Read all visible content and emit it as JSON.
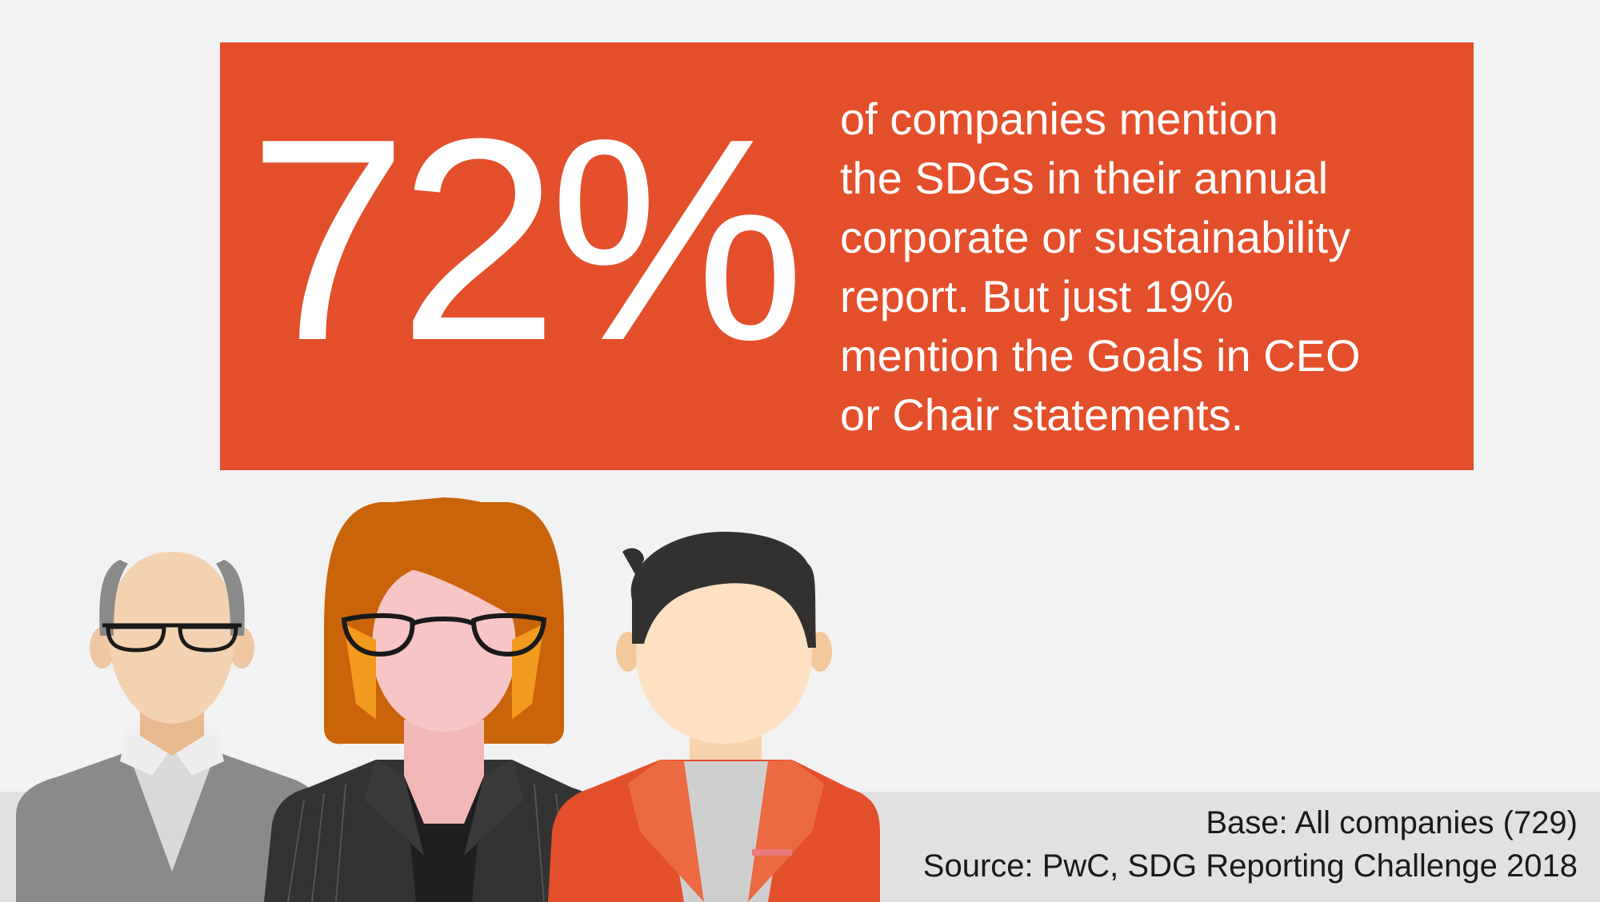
{
  "colors": {
    "background": "#f2f2f2",
    "footer_band": "#e1e1e1",
    "accent_orange": "#e44f2b",
    "text_light": "#ffffff",
    "text_dark": "#1a1a1a"
  },
  "headline": {
    "stat": "72%",
    "lines": [
      "of companies mention",
      "the SDGs in their annual",
      "corporate or sustainability",
      "report. But just 19%",
      "mention the Goals in CEO",
      "or Chair statements."
    ]
  },
  "footnote": {
    "base": "Base: All companies (729)",
    "source": "Source: PwC, SDG Reporting Challenge 2018"
  },
  "illustration": {
    "figures": [
      "older-man-with-glasses",
      "woman-with-glasses",
      "man-in-red-jacket"
    ]
  }
}
